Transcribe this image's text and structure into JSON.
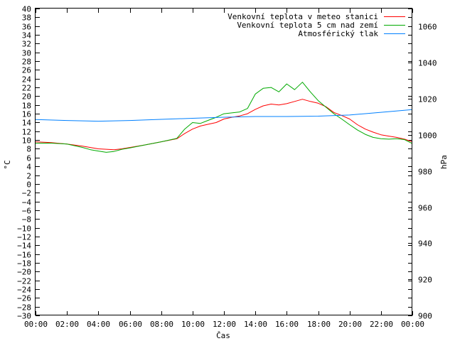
{
  "chart_data": {
    "type": "line",
    "xlabel": "Čas",
    "ylabel_left": "°C",
    "ylabel_right": "hPa",
    "x_ticks": [
      "00:00",
      "02:00",
      "04:00",
      "06:00",
      "08:00",
      "10:00",
      "12:00",
      "14:00",
      "16:00",
      "18:00",
      "20:00",
      "22:00",
      "00:00"
    ],
    "x_range_hours": [
      0,
      24
    ],
    "y_left_range": [
      -30,
      40
    ],
    "y_left_step": 2,
    "y_right_range": [
      900,
      1070
    ],
    "y_right_ticks": [
      900,
      920,
      940,
      960,
      980,
      1000,
      1020,
      1040,
      1060
    ],
    "grid": false,
    "legend_position": "top-right",
    "series": [
      {
        "name": "Venkovní teplota v meteo stanici",
        "color": "#ff0000",
        "axis": "left",
        "x": [
          0,
          1,
          2,
          3,
          3.5,
          4,
          4.5,
          5,
          5.5,
          6,
          7,
          8,
          9,
          9.5,
          10,
          10.5,
          11,
          11.5,
          12,
          12.5,
          13,
          13.5,
          14,
          14.5,
          15,
          15.5,
          16,
          16.5,
          17,
          17.5,
          18,
          18.5,
          19,
          19.5,
          20,
          20.5,
          21,
          21.5,
          22,
          22.5,
          23,
          23.5,
          24
        ],
        "y": [
          9.6,
          9.4,
          9.1,
          8.6,
          8.3,
          8.0,
          7.9,
          7.8,
          8.0,
          8.3,
          8.9,
          9.6,
          10.3,
          11.5,
          12.5,
          13.2,
          13.6,
          14.0,
          14.8,
          15.2,
          15.5,
          16.0,
          17.0,
          17.8,
          18.2,
          18.0,
          18.3,
          18.8,
          19.3,
          18.8,
          18.4,
          17.6,
          16.3,
          15.6,
          14.8,
          13.5,
          12.5,
          11.8,
          11.2,
          10.9,
          10.6,
          10.2,
          9.6
        ]
      },
      {
        "name": "Venkovní teplota 5 cm nad zemí",
        "color": "#00aa00",
        "axis": "left",
        "x": [
          0,
          1,
          2,
          3,
          3.5,
          4,
          4.5,
          5,
          5.5,
          6,
          7,
          8,
          9,
          9.5,
          10,
          10.5,
          11,
          11.5,
          12,
          12.5,
          13,
          13.5,
          14,
          14.5,
          15,
          15.5,
          16,
          16.5,
          17,
          17.5,
          18,
          18.5,
          19,
          19.5,
          20,
          20.5,
          21,
          21.5,
          22,
          22.5,
          23,
          23.5,
          24
        ],
        "y": [
          9.3,
          9.3,
          9.1,
          8.3,
          7.8,
          7.5,
          7.2,
          7.4,
          7.9,
          8.2,
          8.9,
          9.6,
          10.4,
          12.5,
          14.0,
          13.8,
          14.5,
          15.2,
          16.0,
          16.2,
          16.4,
          17.2,
          20.5,
          21.8,
          22.0,
          21.0,
          22.8,
          21.5,
          23.2,
          21.0,
          19.0,
          17.5,
          16.0,
          14.8,
          13.5,
          12.3,
          11.3,
          10.6,
          10.3,
          10.2,
          10.3,
          10.1,
          9.2
        ]
      },
      {
        "name": "Atmosférický tlak",
        "color": "#0080ff",
        "axis": "right",
        "x": [
          0,
          2,
          4,
          6,
          8,
          10,
          12,
          14,
          16,
          18,
          20,
          22,
          24
        ],
        "y": [
          1008.5,
          1008.0,
          1007.6,
          1008.0,
          1008.6,
          1009.2,
          1009.8,
          1010.2,
          1010.2,
          1010.4,
          1011.0,
          1012.5,
          1014.0
        ]
      }
    ]
  }
}
